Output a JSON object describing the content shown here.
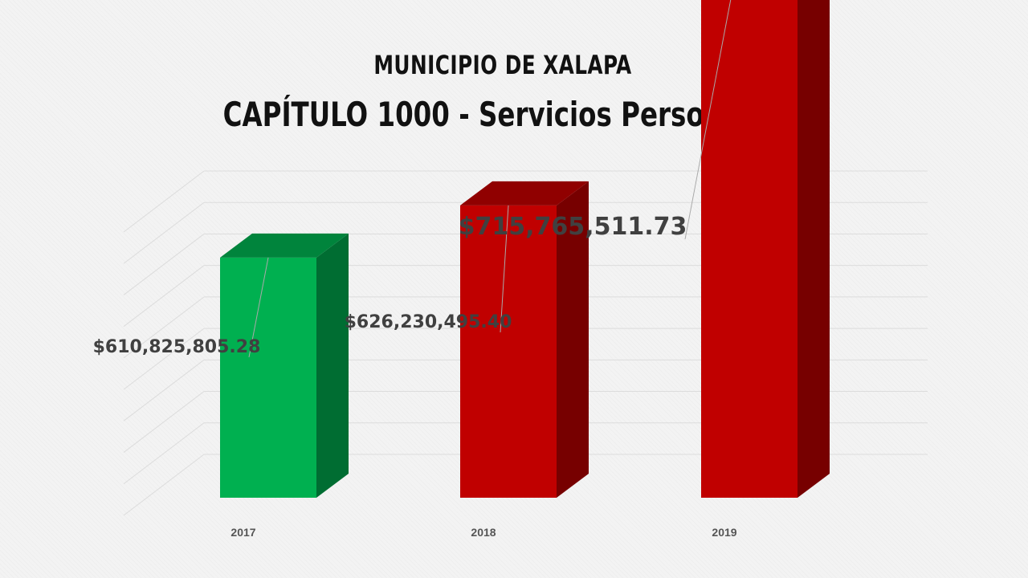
{
  "chart_data": {
    "type": "bar",
    "title": "MUNICIPIO DE XALAPA",
    "subtitle": "CAPÍTULO 1000 - Servicios Personales",
    "categories": [
      "2017",
      "2018",
      "2019"
    ],
    "values": [
      610825805.28,
      626230495.4,
      715765511.73
    ],
    "value_labels": [
      "$610,825,805.28",
      "$626,230,495.40",
      "$715,765,511.73"
    ],
    "colors": [
      "#00b050",
      "#c00000",
      "#c00000"
    ],
    "xlabel": "",
    "ylabel": "",
    "grid": true,
    "legend": "none"
  }
}
